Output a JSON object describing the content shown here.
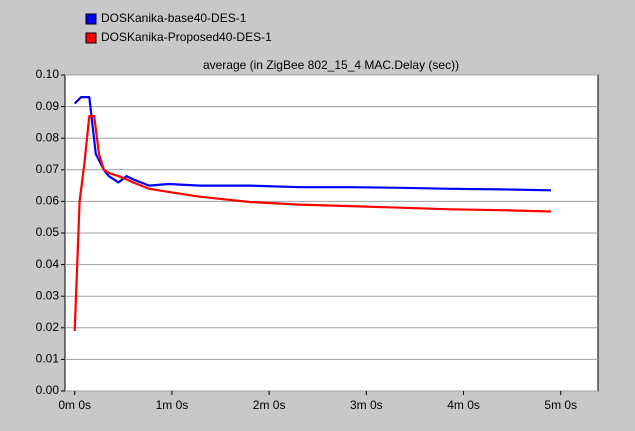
{
  "chart_data": {
    "type": "line",
    "title": "average (in ZigBee 802_15_4 MAC.Delay (sec))",
    "series": [
      {
        "name": "DOSKanika-base40-DES-1",
        "color": "#0000ff",
        "x": [
          0,
          4,
          9,
          13,
          18,
          21,
          27,
          32,
          36,
          46,
          58,
          77,
          108,
          139,
          170,
          201,
          232,
          263,
          294
        ],
        "values": [
          0.091,
          0.093,
          0.093,
          0.075,
          0.07,
          0.068,
          0.066,
          0.068,
          0.067,
          0.065,
          0.0655,
          0.065,
          0.065,
          0.0645,
          0.0645,
          0.0643,
          0.064,
          0.0638,
          0.0635
        ]
      },
      {
        "name": "DOSKanika-Proposed40-DES-1",
        "color": "#ff0000",
        "x": [
          0,
          3,
          6,
          9,
          12,
          15,
          18,
          21,
          27,
          32,
          36,
          46,
          58,
          77,
          108,
          139,
          170,
          201,
          232,
          263,
          294
        ],
        "values": [
          0.019,
          0.06,
          0.072,
          0.087,
          0.087,
          0.075,
          0.07,
          0.069,
          0.068,
          0.067,
          0.066,
          0.064,
          0.063,
          0.0615,
          0.0598,
          0.059,
          0.0585,
          0.058,
          0.0575,
          0.0572,
          0.0568
        ]
      }
    ],
    "xlim": [
      -6,
      323
    ],
    "xticks": [
      {
        "value": 0,
        "label": "0m 0s"
      },
      {
        "value": 60,
        "label": "1m 0s"
      },
      {
        "value": 120,
        "label": "2m 0s"
      },
      {
        "value": 180,
        "label": "3m 0s"
      },
      {
        "value": 240,
        "label": "4m 0s"
      },
      {
        "value": 300,
        "label": "5m 0s"
      }
    ],
    "ylim": [
      0,
      0.1
    ],
    "yticks": [
      {
        "value": 0,
        "label": "0.00"
      },
      0.01,
      0.02,
      0.03,
      0.04,
      0.05,
      0.06,
      0.07,
      0.08,
      0.09,
      {
        "value": 0.1,
        "label": "0.10"
      }
    ],
    "grid": true,
    "legend": "top-left"
  }
}
